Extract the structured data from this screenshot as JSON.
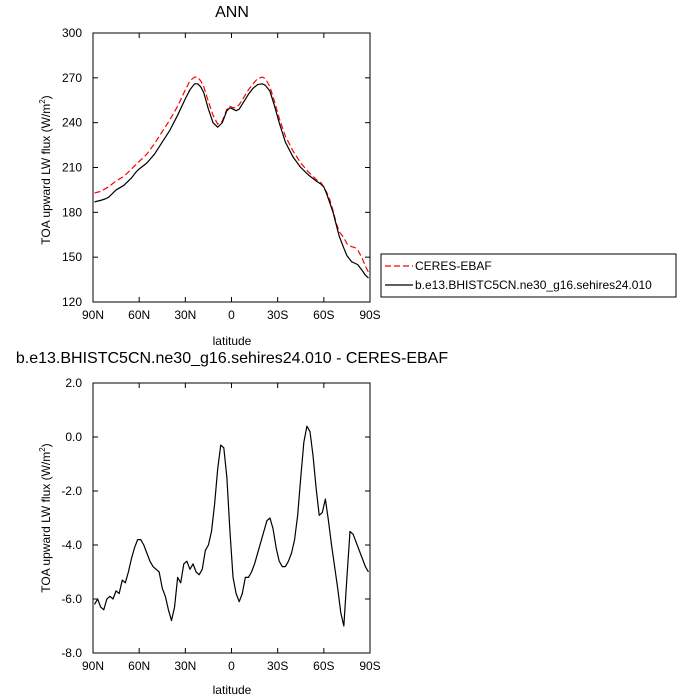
{
  "chart_data": [
    {
      "type": "line",
      "title": "ANN",
      "xlabel": "latitude",
      "ylabel": "TOA upward LW flux (W/m",
      "ylabel_sup": "2",
      "ylabel_suffix": ")",
      "xlim": [
        90,
        -90
      ],
      "ylim": [
        120,
        300
      ],
      "x_ticks": [
        90,
        60,
        30,
        0,
        -30,
        -60,
        -90
      ],
      "x_tick_labels": [
        "90N",
        "60N",
        "30N",
        "0",
        "30S",
        "60S",
        "90S"
      ],
      "y_ticks": [
        120,
        150,
        180,
        210,
        240,
        270,
        300
      ],
      "y_tick_labels": [
        "120",
        "150",
        "180",
        "210",
        "240",
        "270",
        "300"
      ],
      "legend_position": "right",
      "series": [
        {
          "name": "CERES-EBAF",
          "color": "#ff0000",
          "dash": true,
          "x": [
            89,
            85,
            80,
            75,
            70,
            65,
            60,
            55,
            50,
            45,
            40,
            35,
            30,
            27,
            24,
            22,
            20,
            18,
            15,
            12,
            9,
            6,
            3,
            1,
            -1,
            -3,
            -5,
            -8,
            -11,
            -14,
            -17,
            -20,
            -22,
            -25,
            -28,
            -31,
            -35,
            -40,
            -45,
            -50,
            -55,
            -58,
            -60,
            -62,
            -64,
            -66,
            -68,
            -70,
            -73,
            -75,
            -78,
            -80,
            -82,
            -85,
            -87,
            -89
          ],
          "y": [
            193,
            194,
            197,
            201,
            204,
            209,
            214,
            219,
            226,
            234,
            242,
            251,
            262,
            268,
            270.5,
            270.5,
            268,
            264,
            254,
            245,
            239,
            241,
            249,
            251,
            250,
            250,
            252,
            257,
            262,
            266,
            269.5,
            270.5,
            269.5,
            264,
            254,
            243,
            231,
            221,
            213,
            207,
            202,
            200,
            197,
            193,
            188,
            181,
            173,
            167,
            163,
            159,
            157,
            156.5,
            155,
            149,
            144,
            140
          ]
        },
        {
          "name": "b.e13.BHISTC5CN.ne30_g16.sehires24.010",
          "color": "#000000",
          "dash": false,
          "x": [
            89,
            85,
            82,
            80,
            77,
            75,
            70,
            67,
            65,
            62,
            60,
            55,
            50,
            45,
            40,
            35,
            30,
            27,
            24,
            22,
            20,
            18,
            15,
            12,
            9,
            6,
            3,
            1,
            -1,
            -3,
            -5,
            -8,
            -11,
            -14,
            -17,
            -20,
            -22,
            -25,
            -28,
            -31,
            -35,
            -40,
            -45,
            -50,
            -55,
            -58,
            -60,
            -62,
            -64,
            -66,
            -68,
            -70,
            -73,
            -75,
            -78,
            -80,
            -82,
            -85,
            -87,
            -89
          ],
          "y": [
            187,
            188,
            189,
            190,
            193,
            195,
            198,
            201,
            203,
            207,
            209,
            213,
            219,
            227,
            235,
            245,
            256,
            262,
            266,
            266,
            264,
            260,
            249,
            240,
            237,
            240,
            248,
            250,
            249,
            248,
            249,
            254,
            259,
            263,
            265.5,
            266,
            265,
            261,
            251,
            240,
            227,
            217,
            210,
            205,
            201,
            199,
            197,
            192,
            186,
            180,
            172,
            164,
            156,
            151,
            147,
            146,
            145,
            141,
            138,
            136
          ]
        }
      ]
    },
    {
      "type": "line",
      "title": "b.e13.BHISTC5CN.ne30_g16.sehires24.010 - CERES-EBAF",
      "xlabel": "latitude",
      "ylabel": "TOA upward LW flux (W/m",
      "ylabel_sup": "2",
      "ylabel_suffix": ")",
      "xlim": [
        90,
        -90
      ],
      "ylim": [
        -8,
        2
      ],
      "x_ticks": [
        90,
        60,
        30,
        0,
        -30,
        -60,
        -90
      ],
      "x_tick_labels": [
        "90N",
        "60N",
        "30N",
        "0",
        "30S",
        "60S",
        "90S"
      ],
      "y_ticks": [
        -8,
        -6,
        -4,
        -2,
        0,
        2
      ],
      "y_tick_labels": [
        "-8.0",
        "-6.0",
        "-4.0",
        "-2.0",
        "0.0",
        "2.0"
      ],
      "series": [
        {
          "color": "#000000",
          "dash": false,
          "x": [
            89,
            87,
            85,
            83,
            81,
            79,
            77,
            75,
            73,
            71,
            69,
            67,
            65,
            63,
            61,
            59,
            57,
            55,
            53,
            51,
            49,
            47,
            45,
            43,
            41,
            39,
            37,
            35,
            33,
            31,
            29,
            27,
            25,
            23,
            21,
            19,
            17,
            15,
            13,
            11,
            9,
            7,
            5,
            3,
            1,
            -1,
            -3,
            -5,
            -7,
            -9,
            -11,
            -13,
            -15,
            -17,
            -19,
            -21,
            -23,
            -25,
            -27,
            -29,
            -31,
            -33,
            -35,
            -37,
            -39,
            -41,
            -43,
            -45,
            -47,
            -49,
            -51,
            -53,
            -55,
            -57,
            -59,
            -61,
            -63,
            -65,
            -67,
            -69,
            -71,
            -73,
            -75,
            -77,
            -79,
            -81,
            -83,
            -85,
            -87,
            -89
          ],
          "y": [
            -6.2,
            -6.0,
            -6.3,
            -6.4,
            -6.0,
            -5.9,
            -6.0,
            -5.7,
            -5.8,
            -5.3,
            -5.4,
            -5.0,
            -4.5,
            -4.1,
            -3.8,
            -3.8,
            -4.0,
            -4.3,
            -4.6,
            -4.8,
            -4.9,
            -5.0,
            -5.6,
            -5.9,
            -6.4,
            -6.8,
            -6.3,
            -5.2,
            -5.4,
            -4.7,
            -4.6,
            -4.9,
            -4.7,
            -5.0,
            -5.1,
            -4.9,
            -4.2,
            -4.0,
            -3.5,
            -2.5,
            -1.2,
            -0.3,
            -0.4,
            -1.5,
            -3.5,
            -5.2,
            -5.8,
            -6.1,
            -5.8,
            -5.2,
            -5.2,
            -5.0,
            -4.7,
            -4.3,
            -3.9,
            -3.5,
            -3.1,
            -3.0,
            -3.4,
            -4.1,
            -4.6,
            -4.8,
            -4.8,
            -4.6,
            -4.3,
            -3.8,
            -2.9,
            -1.5,
            -0.2,
            0.4,
            0.2,
            -0.7,
            -1.9,
            -2.9,
            -2.8,
            -2.3,
            -3.1,
            -4.0,
            -4.8,
            -5.6,
            -6.5,
            -7.0,
            -5.2,
            -3.5,
            -3.6,
            -3.9,
            -4.2,
            -4.5,
            -4.8,
            -5.0
          ]
        }
      ]
    }
  ]
}
